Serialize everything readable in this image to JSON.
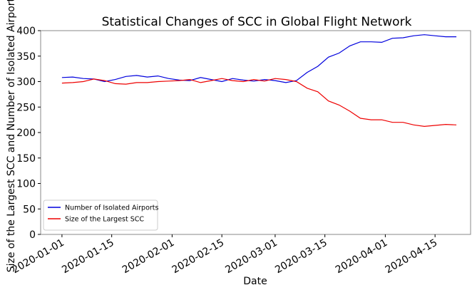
{
  "chart_data": {
    "type": "line",
    "title": "Statistical Changes of SCC in Global Flight Network",
    "xlabel": "Date",
    "ylabel": "Size of the Largest SCC and Number of Isolated Airports",
    "x": [
      "2020-01-01",
      "2020-01-04",
      "2020-01-07",
      "2020-01-10",
      "2020-01-13",
      "2020-01-16",
      "2020-01-19",
      "2020-01-22",
      "2020-01-25",
      "2020-01-28",
      "2020-01-31",
      "2020-02-03",
      "2020-02-06",
      "2020-02-09",
      "2020-02-12",
      "2020-02-15",
      "2020-02-18",
      "2020-02-21",
      "2020-02-24",
      "2020-02-27",
      "2020-03-01",
      "2020-03-04",
      "2020-03-07",
      "2020-03-10",
      "2020-03-13",
      "2020-03-16",
      "2020-03-19",
      "2020-03-22",
      "2020-03-25",
      "2020-03-28",
      "2020-03-31",
      "2020-04-03",
      "2020-04-06",
      "2020-04-09",
      "2020-04-12",
      "2020-04-15",
      "2020-04-18",
      "2020-04-21"
    ],
    "series": [
      {
        "name": "Number of Isolated Airports",
        "color": "#0000dd",
        "values": [
          308,
          309,
          306,
          305,
          300,
          304,
          310,
          312,
          309,
          311,
          306,
          303,
          302,
          308,
          304,
          300,
          306,
          303,
          301,
          304,
          302,
          298,
          302,
          318,
          330,
          348,
          356,
          370,
          378,
          378,
          377,
          385,
          386,
          390,
          392,
          390,
          388,
          388
        ]
      },
      {
        "name": "Size of the Largest SCC",
        "color": "#ee0000",
        "values": [
          297,
          298,
          300,
          305,
          302,
          296,
          295,
          298,
          298,
          300,
          301,
          302,
          304,
          298,
          302,
          306,
          302,
          300,
          304,
          301,
          306,
          304,
          300,
          287,
          280,
          262,
          254,
          242,
          228,
          225,
          225,
          220,
          220,
          215,
          212,
          214,
          216,
          215
        ]
      }
    ],
    "xlim": [
      "2019-12-26",
      "2020-04-25"
    ],
    "xticks": [
      "2020-01-01",
      "2020-01-15",
      "2020-02-01",
      "2020-02-15",
      "2020-03-01",
      "2020-03-15",
      "2020-04-01",
      "2020-04-15"
    ],
    "ylim": [
      0,
      400
    ],
    "yticks": [
      0,
      50,
      100,
      150,
      200,
      250,
      300,
      350,
      400
    ],
    "legend": "lower left"
  }
}
